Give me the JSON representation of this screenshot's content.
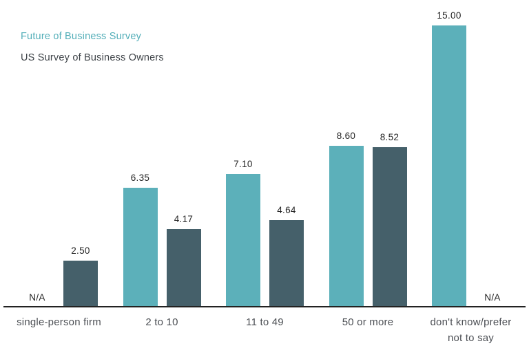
{
  "legend": {
    "series1_label": "Future of Business Survey",
    "series2_label": "US Survey of Business Owners"
  },
  "colors": {
    "series1": "#5cb0ba",
    "series2": "#45606a",
    "axis_line": "#222222",
    "value_label_text": "#242424",
    "category_label_text": "#4c4f54",
    "legend_series1_text": "#52aeb8",
    "legend_series2_text": "#3f4449",
    "background": "#ffffff"
  },
  "chart_data": {
    "type": "bar",
    "title": "",
    "categories": [
      "single-person firm",
      "2 to 10",
      "11 to 49",
      "50 or more",
      "don't know/prefer\nnot to say"
    ],
    "series": [
      {
        "name": "Future of Business Survey",
        "color": "#5cb0ba",
        "values": [
          null,
          6.35,
          7.1,
          8.6,
          15.0
        ],
        "value_labels": [
          "N/A",
          "6.35",
          "7.10",
          "8.60",
          "15.00"
        ]
      },
      {
        "name": "US Survey of Business Owners",
        "color": "#45606a",
        "values": [
          2.5,
          4.17,
          4.64,
          8.52,
          null
        ],
        "value_labels": [
          "2.50",
          "4.17",
          "4.64",
          "8.52",
          "N/A"
        ]
      }
    ],
    "ylim": [
      0,
      15
    ],
    "gridlines": false,
    "y_axis_shown": false,
    "legend_position": "top-left",
    "na_text": "N/A"
  }
}
